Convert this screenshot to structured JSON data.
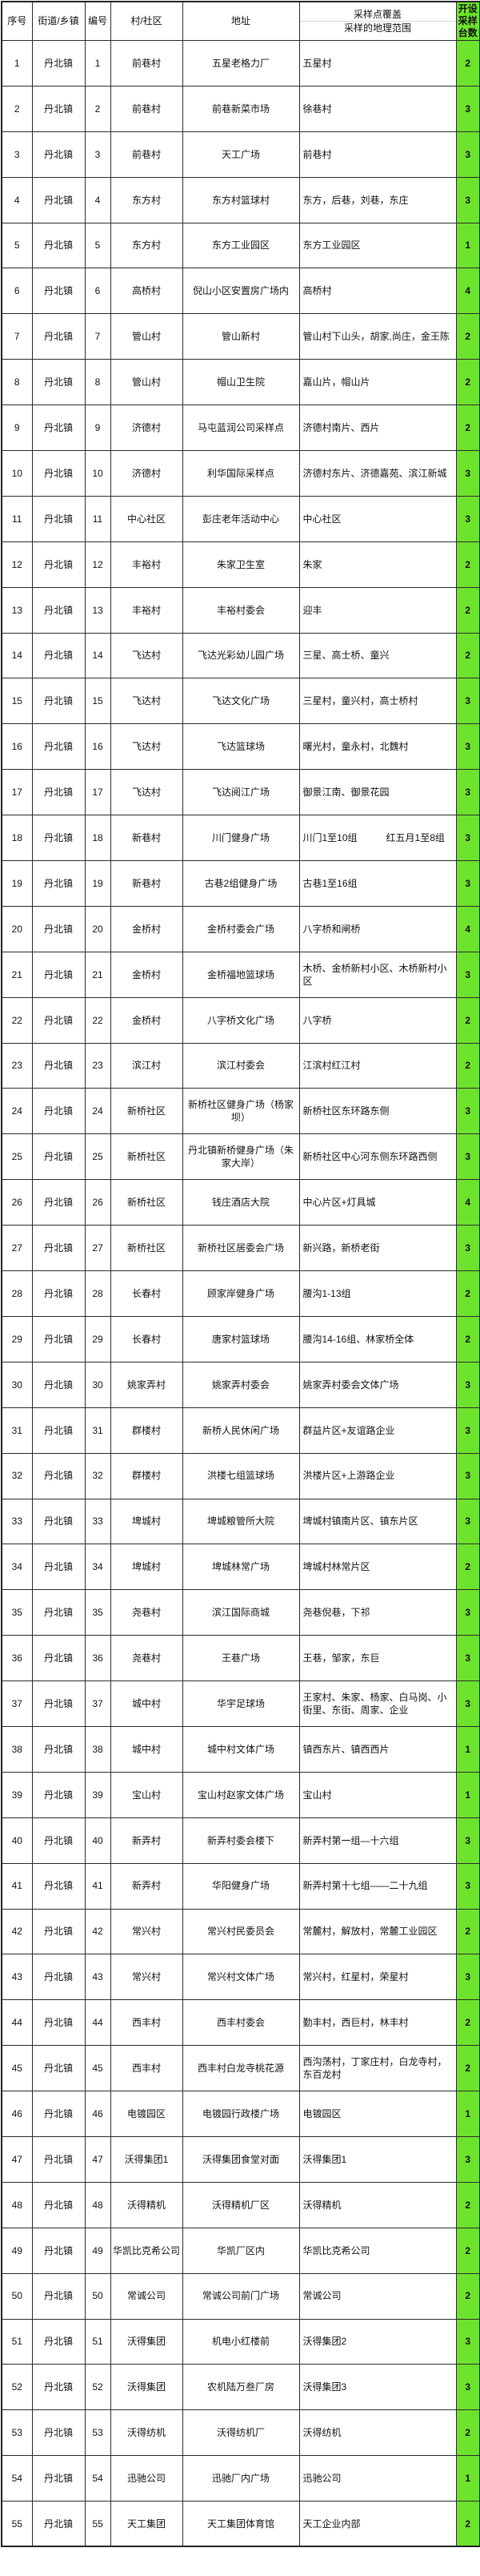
{
  "colors": {
    "count_column_bg": "#6ee32d",
    "grid_border": "#2b2b2b",
    "header_divider": "#d9d9d9"
  },
  "table": {
    "headers": {
      "seq": "序号",
      "town": "街道/乡镇",
      "code": "编号",
      "village": "村/社区",
      "address": "地址",
      "coverage_top": "采样点覆盖",
      "coverage_bottom": "采样的地理范围",
      "count": "开设采样台数"
    },
    "rows": [
      {
        "seq": "1",
        "town": "丹北镇",
        "code": "1",
        "village": "前巷村",
        "address": "五星老格力厂",
        "coverage": "五星村",
        "count": "2"
      },
      {
        "seq": "2",
        "town": "丹北镇",
        "code": "2",
        "village": "前巷村",
        "address": "前巷新菜市场",
        "coverage": "徐巷村",
        "count": "3"
      },
      {
        "seq": "3",
        "town": "丹北镇",
        "code": "3",
        "village": "前巷村",
        "address": "天工广场",
        "coverage": "前巷村",
        "count": "3"
      },
      {
        "seq": "4",
        "town": "丹北镇",
        "code": "4",
        "village": "东方村",
        "address": "东方村篮球村",
        "coverage": "东方，后巷，刘巷，东庄",
        "count": "3"
      },
      {
        "seq": "5",
        "town": "丹北镇",
        "code": "5",
        "village": "东方村",
        "address": "东方工业园区",
        "coverage": "东方工业园区",
        "count": "1"
      },
      {
        "seq": "6",
        "town": "丹北镇",
        "code": "6",
        "village": "高桥村",
        "address": "倪山小区安置房广场内",
        "coverage": "高桥村",
        "count": "4"
      },
      {
        "seq": "7",
        "town": "丹北镇",
        "code": "7",
        "village": "管山村",
        "address": "管山新村",
        "coverage": "管山村下山头，胡家,尚庄，金王陈",
        "count": "2"
      },
      {
        "seq": "8",
        "town": "丹北镇",
        "code": "8",
        "village": "管山村",
        "address": "帽山卫生院",
        "coverage": "嘉山片，帽山片",
        "count": "2"
      },
      {
        "seq": "9",
        "town": "丹北镇",
        "code": "9",
        "village": "济德村",
        "address": "马屯蓝润公司采样点",
        "coverage": "济德村南片、西片",
        "count": "2"
      },
      {
        "seq": "10",
        "town": "丹北镇",
        "code": "10",
        "village": "济德村",
        "address": "利华国际采样点",
        "coverage": "济德村东片、济德嘉苑、滨江新城",
        "count": "3"
      },
      {
        "seq": "11",
        "town": "丹北镇",
        "code": "11",
        "village": "中心社区",
        "address": "彭庄老年活动中心",
        "coverage": "中心社区",
        "count": "3"
      },
      {
        "seq": "12",
        "town": "丹北镇",
        "code": "12",
        "village": "丰裕村",
        "address": "朱家卫生室",
        "coverage": "朱家",
        "count": "2"
      },
      {
        "seq": "13",
        "town": "丹北镇",
        "code": "13",
        "village": "丰裕村",
        "address": "丰裕村委会",
        "coverage": "迎丰",
        "count": "2"
      },
      {
        "seq": "14",
        "town": "丹北镇",
        "code": "14",
        "village": "飞达村",
        "address": "飞达光彩幼儿园广场",
        "coverage": "三星、高士桥、童兴",
        "count": "2"
      },
      {
        "seq": "15",
        "town": "丹北镇",
        "code": "15",
        "village": "飞达村",
        "address": "飞达文化广场",
        "coverage": "三星村，童兴村，高士桥村",
        "count": "3"
      },
      {
        "seq": "16",
        "town": "丹北镇",
        "code": "16",
        "village": "飞达村",
        "address": "飞达篮球场",
        "coverage": "曙光村，童永村，北魏村",
        "count": "3"
      },
      {
        "seq": "17",
        "town": "丹北镇",
        "code": "17",
        "village": "飞达村",
        "address": "飞达阅江广场",
        "coverage": "御景江南、御景花园",
        "count": "3"
      },
      {
        "seq": "18",
        "town": "丹北镇",
        "code": "18",
        "village": "新巷村",
        "address": "川门健身广场",
        "coverage": "川门1至10组　　　红五月1至8组",
        "count": "3"
      },
      {
        "seq": "19",
        "town": "丹北镇",
        "code": "19",
        "village": "新巷村",
        "address": "古巷2组健身广场",
        "coverage": "古巷1至16组",
        "count": "3"
      },
      {
        "seq": "20",
        "town": "丹北镇",
        "code": "20",
        "village": "金桥村",
        "address": "金桥村委会广场",
        "coverage": "八字桥和闸桥",
        "count": "4"
      },
      {
        "seq": "21",
        "town": "丹北镇",
        "code": "21",
        "village": "金桥村",
        "address": "金桥福地篮球场",
        "coverage": "木桥、金桥新村小区、木桥新村小区",
        "count": "3"
      },
      {
        "seq": "22",
        "town": "丹北镇",
        "code": "22",
        "village": "金桥村",
        "address": "八字桥文化广场",
        "coverage": "八字桥",
        "count": "2"
      },
      {
        "seq": "23",
        "town": "丹北镇",
        "code": "23",
        "village": "滨江村",
        "address": "滨江村委会",
        "coverage": "江滨村红江村",
        "count": "2"
      },
      {
        "seq": "24",
        "town": "丹北镇",
        "code": "24",
        "village": "新桥社区",
        "address": "新桥社区健身广场（杨家坝）",
        "coverage": "新桥社区东环路东侧",
        "count": "3"
      },
      {
        "seq": "25",
        "town": "丹北镇",
        "code": "25",
        "village": "新桥社区",
        "address": "丹北镇新桥健身广场（朱家大岸）",
        "coverage": "新桥社区中心河东侧东环路西侧",
        "count": "3"
      },
      {
        "seq": "26",
        "town": "丹北镇",
        "code": "26",
        "village": "新桥社区",
        "address": "钱庄酒店大院",
        "coverage": "中心片区+灯具城",
        "count": "4"
      },
      {
        "seq": "27",
        "town": "丹北镇",
        "code": "27",
        "village": "新桥社区",
        "address": "新桥社区居委会广场",
        "coverage": "新兴路，新桥老街",
        "count": "3"
      },
      {
        "seq": "28",
        "town": "丹北镇",
        "code": "28",
        "village": "长春村",
        "address": "顾家岸健身广场",
        "coverage": "腰沟1-13组",
        "count": "2"
      },
      {
        "seq": "29",
        "town": "丹北镇",
        "code": "29",
        "village": "长春村",
        "address": "唐家村篮球场",
        "coverage": "腰沟14-16组、林家桥全体",
        "count": "2"
      },
      {
        "seq": "30",
        "town": "丹北镇",
        "code": "30",
        "village": "姚家弄村",
        "address": "姚家弄村委会",
        "coverage": "姚家弄村委会文体广场",
        "count": "3"
      },
      {
        "seq": "31",
        "town": "丹北镇",
        "code": "31",
        "village": "群楼村",
        "address": "新桥人民休闲广场",
        "coverage": "群益片区+友谊路企业",
        "count": "3"
      },
      {
        "seq": "32",
        "town": "丹北镇",
        "code": "32",
        "village": "群楼村",
        "address": "洪楼七组篮球场",
        "coverage": "洪楼片区+上游路企业",
        "count": "3"
      },
      {
        "seq": "33",
        "town": "丹北镇",
        "code": "33",
        "village": "埤城村",
        "address": "埤城粮管所大院",
        "coverage": "埤城村镇南片区、镇东片区",
        "count": "3"
      },
      {
        "seq": "34",
        "town": "丹北镇",
        "code": "34",
        "village": "埤城村",
        "address": "埤城林常广场",
        "coverage": "埤城村林常片区",
        "count": "2"
      },
      {
        "seq": "35",
        "town": "丹北镇",
        "code": "35",
        "village": "尧巷村",
        "address": "滨江国际商城",
        "coverage": "尧巷倪巷，下祁",
        "count": "3"
      },
      {
        "seq": "36",
        "town": "丹北镇",
        "code": "36",
        "village": "尧巷村",
        "address": "王巷广场",
        "coverage": "王巷，邹家，东巨",
        "count": "3"
      },
      {
        "seq": "37",
        "town": "丹北镇",
        "code": "37",
        "village": "城中村",
        "address": "华宇足球场",
        "coverage": "王家村、朱家、杨家、白马岗、小街里、东街、周家、企业",
        "count": "3"
      },
      {
        "seq": "38",
        "town": "丹北镇",
        "code": "38",
        "village": "城中村",
        "address": "城中村文体广场",
        "coverage": "镇西东片、镇西西片",
        "count": "1"
      },
      {
        "seq": "39",
        "town": "丹北镇",
        "code": "39",
        "village": "宝山村",
        "address": "宝山村赵家文体广场",
        "coverage": "宝山村",
        "count": "1"
      },
      {
        "seq": "40",
        "town": "丹北镇",
        "code": "40",
        "village": "新弄村",
        "address": "新弄村委会楼下",
        "coverage": "新弄村第一组—十六组",
        "count": "3"
      },
      {
        "seq": "41",
        "town": "丹北镇",
        "code": "41",
        "village": "新弄村",
        "address": "华阳健身广场",
        "coverage": "新弄村第十七组——二十九组",
        "count": "3"
      },
      {
        "seq": "42",
        "town": "丹北镇",
        "code": "42",
        "village": "常兴村",
        "address": "常兴村民委员会",
        "coverage": "常麓村，解放村，常麓工业园区",
        "count": "2"
      },
      {
        "seq": "43",
        "town": "丹北镇",
        "code": "43",
        "village": "常兴村",
        "address": "常兴村文体广场",
        "coverage": "常兴村，红星村，荣星村",
        "count": "3"
      },
      {
        "seq": "44",
        "town": "丹北镇",
        "code": "44",
        "village": "西丰村",
        "address": "西丰村委会",
        "coverage": "勤丰村，西巨村，林丰村",
        "count": "2"
      },
      {
        "seq": "45",
        "town": "丹北镇",
        "code": "45",
        "village": "西丰村",
        "address": "西丰村白龙寺桃花源",
        "coverage": "西沟荡村，丁家庄村，白龙寺村，东百龙村",
        "count": "2"
      },
      {
        "seq": "46",
        "town": "丹北镇",
        "code": "46",
        "village": "电镀园区",
        "address": "电镀园行政楼广场",
        "coverage": "电镀园区",
        "count": "1"
      },
      {
        "seq": "47",
        "town": "丹北镇",
        "code": "47",
        "village": "沃得集团1",
        "address": "沃得集团食堂对面",
        "coverage": "沃得集团1",
        "count": "3"
      },
      {
        "seq": "48",
        "town": "丹北镇",
        "code": "48",
        "village": "沃得精机",
        "address": "沃得精机厂区",
        "coverage": "沃得精机",
        "count": "2"
      },
      {
        "seq": "49",
        "town": "丹北镇",
        "code": "49",
        "village": "华凯比克希公司",
        "address": "华凯厂区内",
        "coverage": "华凯比克希公司",
        "count": "2"
      },
      {
        "seq": "50",
        "town": "丹北镇",
        "code": "50",
        "village": "常诚公司",
        "address": "常诚公司前门广场",
        "coverage": "常诚公司",
        "count": "2"
      },
      {
        "seq": "51",
        "town": "丹北镇",
        "code": "51",
        "village": "沃得集团",
        "address": "机电小红楼前",
        "coverage": "沃得集团2",
        "count": "3"
      },
      {
        "seq": "52",
        "town": "丹北镇",
        "code": "52",
        "village": "沃得集团",
        "address": "农机陆万叁厂房",
        "coverage": "沃得集团3",
        "count": "3"
      },
      {
        "seq": "53",
        "town": "丹北镇",
        "code": "53",
        "village": "沃得纺机",
        "address": "沃得纺机厂",
        "coverage": "沃得纺机",
        "count": "2"
      },
      {
        "seq": "54",
        "town": "丹北镇",
        "code": "54",
        "village": "迅驰公司",
        "address": "迅驰厂内广场",
        "coverage": "迅驰公司",
        "count": "1"
      },
      {
        "seq": "55",
        "town": "丹北镇",
        "code": "55",
        "village": "天工集团",
        "address": "天工集团体育馆",
        "coverage": "天工企业内部",
        "count": "2"
      }
    ]
  }
}
